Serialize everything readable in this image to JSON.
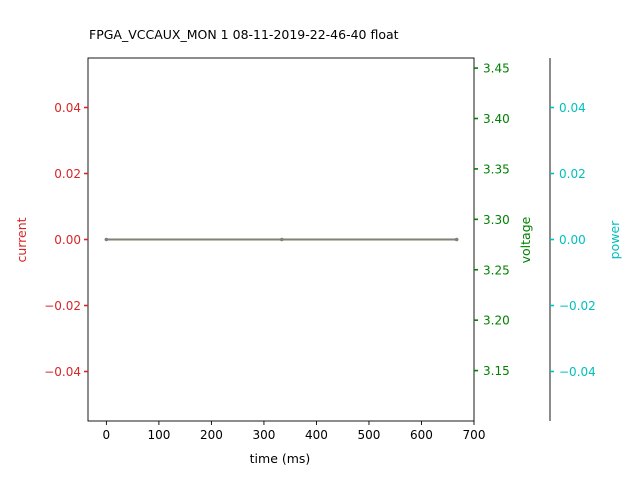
{
  "chart_data": {
    "type": "line",
    "title": "FPGA_VCCAUX_MON   1   08-11-2019-22-46-40   float",
    "xlabel": "time (ms)",
    "xlim": [
      -35,
      700
    ],
    "xticks": [
      0,
      100,
      200,
      300,
      400,
      500,
      600,
      700
    ],
    "axes": {
      "current": {
        "label": "current",
        "color": "#d62728",
        "ylim": [
          -0.055,
          0.055
        ],
        "ticks": [
          -0.04,
          -0.02,
          0.0,
          0.02,
          0.04
        ],
        "tick_labels": [
          "−0.04",
          "−0.02",
          "0.00",
          "0.02",
          "0.04"
        ]
      },
      "voltage": {
        "label": "voltage",
        "color": "#008000",
        "ylim": [
          3.1,
          3.46
        ],
        "ticks": [
          3.15,
          3.2,
          3.25,
          3.3,
          3.35,
          3.4,
          3.45
        ],
        "tick_labels": [
          "3.15",
          "3.20",
          "3.25",
          "3.30",
          "3.35",
          "3.40",
          "3.45"
        ]
      },
      "power": {
        "label": "power",
        "color": "#00bfbf",
        "ylim": [
          -0.055,
          0.055
        ],
        "ticks": [
          -0.04,
          -0.02,
          0.0,
          0.02,
          0.04
        ],
        "tick_labels": [
          "−0.04",
          "−0.02",
          "0.00",
          "0.02",
          "0.04"
        ]
      }
    },
    "series": [
      {
        "axis": "current",
        "color": "#d62728",
        "x": [
          0,
          334,
          667
        ],
        "y": [
          0,
          0,
          0
        ]
      },
      {
        "axis": "voltage",
        "color": "#008000",
        "x": [
          0,
          334,
          667
        ],
        "y": [
          3.28,
          3.28,
          3.28
        ]
      },
      {
        "axis": "power",
        "color": "#808080",
        "x": [
          0,
          334,
          667
        ],
        "y": [
          0,
          0,
          0
        ]
      }
    ],
    "grid": false
  }
}
